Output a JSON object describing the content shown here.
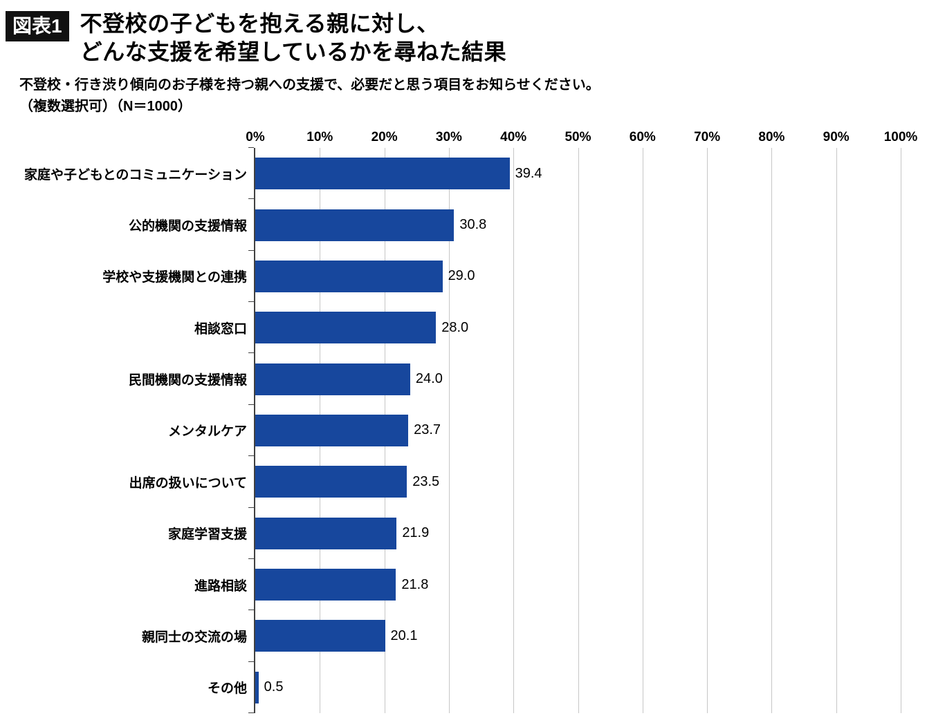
{
  "header": {
    "badge": "図表1",
    "title_line1": "不登校の子どもを抱える親に対し、",
    "title_line2": "どんな支援を希望しているかを尋ねた結果",
    "subtitle_line1": "不登校・行き渋り傾向のお子様を持つ親への支援で、必要だと思う項目をお知らせください。",
    "subtitle_line2": "（複数選択可）（N＝1000）"
  },
  "chart_data": {
    "type": "bar",
    "orientation": "horizontal",
    "title": "不登校の子どもを抱える親に対し、どんな支援を希望しているかを尋ねた結果",
    "subtitle": "不登校・行き渋り傾向のお子様を持つ親への支援で、必要だと思う項目をお知らせください。（複数選択可）（N＝1000）",
    "categories": [
      "家庭や子どもとのコミュニケーション",
      "公的機関の支援情報",
      "学校や支援機関との連携",
      "相談窓口",
      "民間機関の支援情報",
      "メンタルケア",
      "出席の扱いについて",
      "家庭学習支援",
      "進路相談",
      "親同士の交流の場",
      "その他"
    ],
    "values": [
      39.4,
      30.8,
      29.0,
      28.0,
      24.0,
      23.7,
      23.5,
      21.9,
      21.8,
      20.1,
      0.5
    ],
    "value_labels": [
      "39.4",
      "30.8",
      "29.0",
      "28.0",
      "24.0",
      "23.7",
      "23.5",
      "21.9",
      "21.8",
      "20.1",
      "0.5"
    ],
    "x_ticks": [
      0,
      10,
      20,
      30,
      40,
      50,
      60,
      70,
      80,
      90,
      100
    ],
    "x_tick_suffix": "%",
    "xlim": [
      0,
      100
    ],
    "grid": true,
    "legend": "none",
    "bar_color": "#17479d",
    "axis_color": "#404040",
    "gridline_color": "#c6c6c6"
  }
}
